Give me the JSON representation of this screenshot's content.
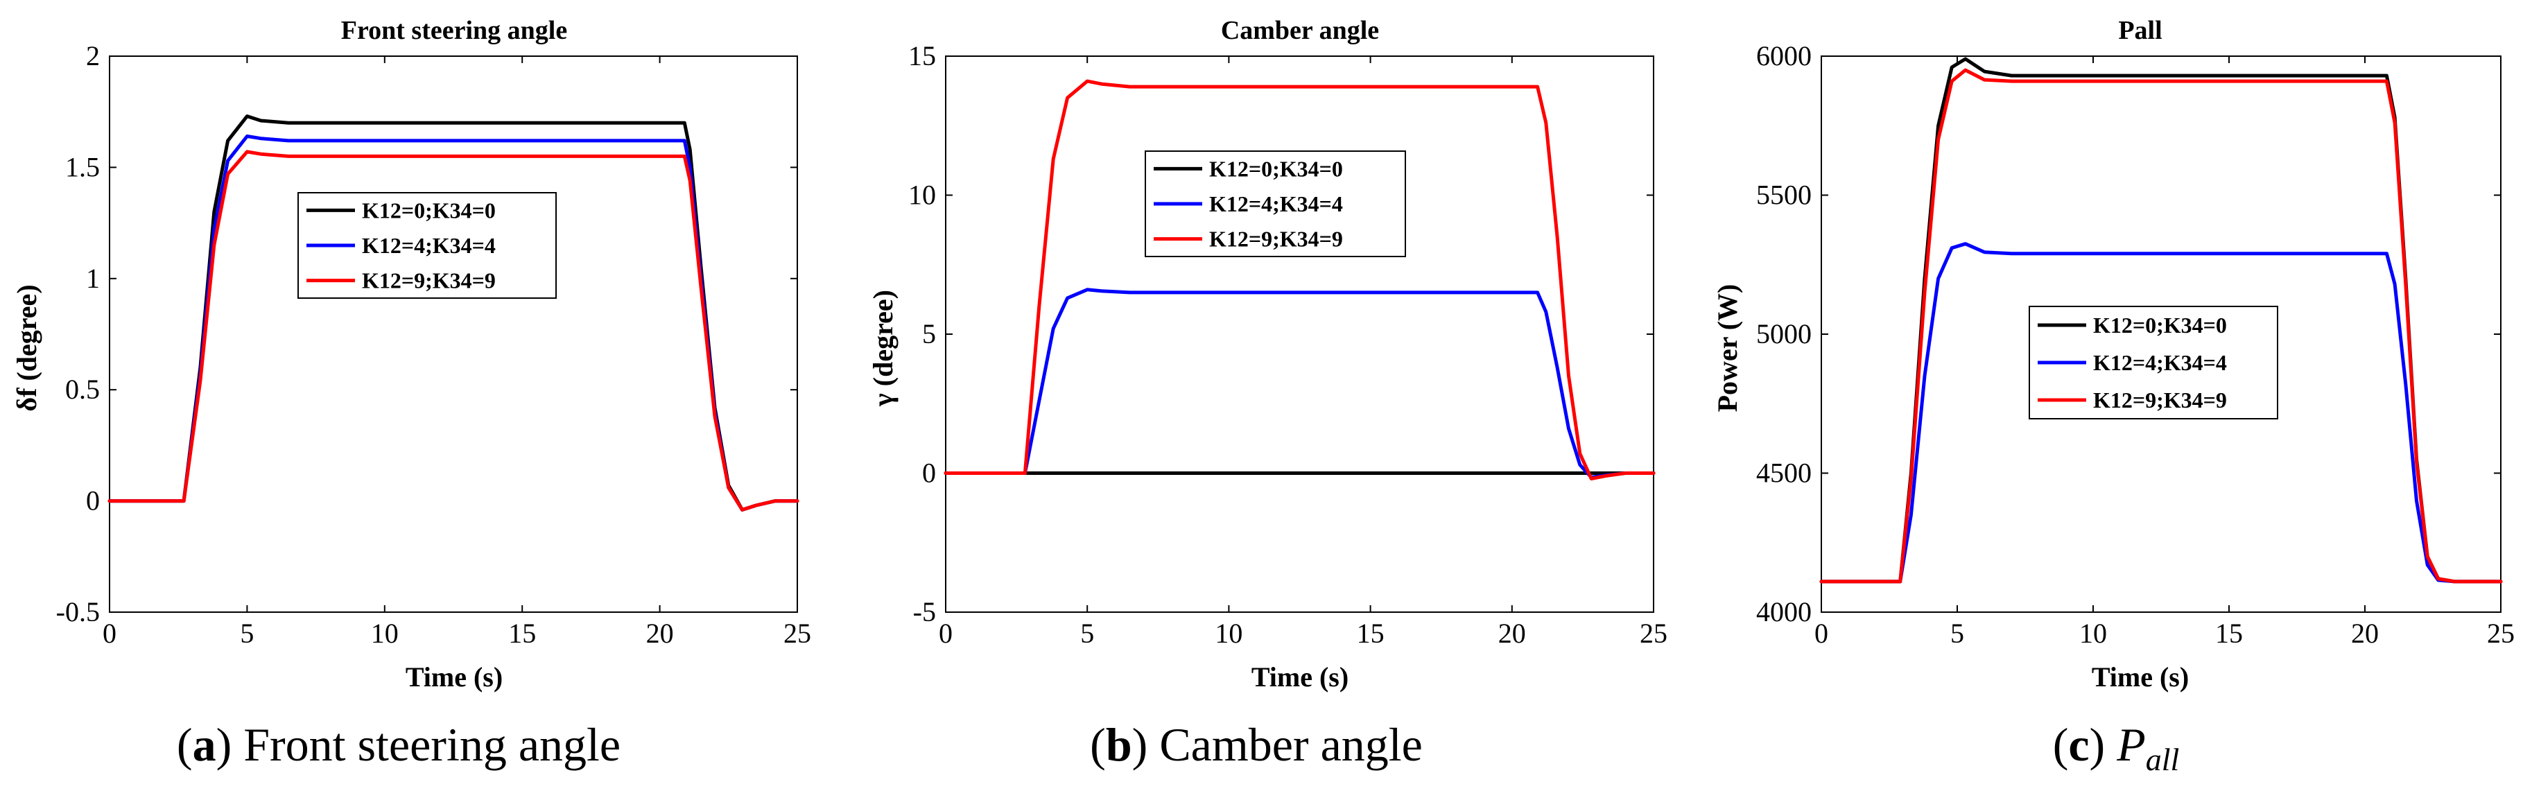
{
  "chart_data": [
    {
      "type": "line",
      "title": "Front steering angle",
      "xlabel": "Time (s)",
      "ylabel": "δf (degree)",
      "xlim": [
        0,
        25
      ],
      "ylim": [
        -0.5,
        2
      ],
      "xticks": [
        0,
        5,
        10,
        15,
        20,
        25
      ],
      "xtick_labels": [
        "0",
        "5",
        "10",
        "15",
        "20",
        "25"
      ],
      "yticks": [
        -0.5,
        0,
        0.5,
        1,
        1.5,
        2
      ],
      "ytick_labels": [
        "-0.5",
        "0",
        "0.5",
        "1",
        "1.5",
        "2"
      ],
      "legend_position": "upper-middle",
      "caption": {
        "letter": "a",
        "text": "Front steering angle"
      },
      "series": [
        {
          "name": "K12=0;K34=0",
          "color": "#000000",
          "x": [
            0,
            2.7,
            3.3,
            3.8,
            4.3,
            5.0,
            5.5,
            6.5,
            8,
            20.9,
            21.1,
            21.5,
            22.0,
            22.5,
            23.0,
            23.5,
            24.2,
            25
          ],
          "y": [
            0,
            0,
            0.6,
            1.3,
            1.62,
            1.73,
            1.71,
            1.7,
            1.7,
            1.7,
            1.58,
            1.05,
            0.42,
            0.07,
            -0.04,
            -0.02,
            0.0,
            0.0
          ]
        },
        {
          "name": "K12=4;K34=4",
          "color": "#0000ff",
          "x": [
            0,
            2.7,
            3.3,
            3.8,
            4.3,
            5.0,
            5.5,
            6.5,
            8,
            20.9,
            21.1,
            21.5,
            22.0,
            22.5,
            23.0,
            23.5,
            24.2,
            25
          ],
          "y": [
            0,
            0,
            0.57,
            1.22,
            1.53,
            1.64,
            1.63,
            1.62,
            1.62,
            1.62,
            1.5,
            1.0,
            0.4,
            0.06,
            -0.04,
            -0.02,
            0.0,
            0.0
          ]
        },
        {
          "name": "K12=9;K34=9",
          "color": "#ff0000",
          "x": [
            0,
            2.7,
            3.3,
            3.8,
            4.3,
            5.0,
            5.5,
            6.5,
            8,
            20.9,
            21.1,
            21.5,
            22.0,
            22.5,
            23.0,
            23.5,
            24.2,
            25
          ],
          "y": [
            0,
            0,
            0.54,
            1.15,
            1.47,
            1.57,
            1.56,
            1.55,
            1.55,
            1.55,
            1.44,
            0.96,
            0.38,
            0.06,
            -0.04,
            -0.02,
            0.0,
            0.0
          ]
        }
      ]
    },
    {
      "type": "line",
      "title": "Camber angle",
      "xlabel": "Time (s)",
      "ylabel": "γ (degree)",
      "xlim": [
        0,
        25
      ],
      "ylim": [
        -5,
        15
      ],
      "xticks": [
        0,
        5,
        10,
        15,
        20,
        25
      ],
      "xtick_labels": [
        "0",
        "5",
        "10",
        "15",
        "20",
        "25"
      ],
      "yticks": [
        -5,
        0,
        5,
        10,
        15
      ],
      "ytick_labels": [
        "-5",
        "0",
        "5",
        "10",
        "15"
      ],
      "legend_position": "upper-middle",
      "caption": {
        "letter": "b",
        "text": "Camber angle"
      },
      "series": [
        {
          "name": "K12=0;K34=0",
          "color": "#000000",
          "x": [
            0,
            25
          ],
          "y": [
            0,
            0
          ]
        },
        {
          "name": "K12=4;K34=4",
          "color": "#0000ff",
          "x": [
            0,
            2.8,
            3.3,
            3.8,
            4.3,
            5.0,
            5.5,
            6.5,
            8,
            20.9,
            21.2,
            21.6,
            22.0,
            22.4,
            22.8,
            23.3,
            24.0,
            25
          ],
          "y": [
            0,
            0,
            2.6,
            5.2,
            6.3,
            6.6,
            6.55,
            6.5,
            6.5,
            6.5,
            5.8,
            3.8,
            1.6,
            0.3,
            -0.15,
            -0.08,
            0,
            0
          ]
        },
        {
          "name": "K12=9;K34=9",
          "color": "#ff0000",
          "x": [
            0,
            2.8,
            3.3,
            3.8,
            4.3,
            5.0,
            5.5,
            6.5,
            8,
            20.9,
            21.2,
            21.6,
            22.0,
            22.4,
            22.8,
            23.3,
            24.0,
            25
          ],
          "y": [
            0,
            0,
            6.0,
            11.3,
            13.5,
            14.1,
            14.0,
            13.9,
            13.9,
            13.9,
            12.6,
            8.5,
            3.5,
            0.7,
            -0.2,
            -0.1,
            0,
            0
          ]
        }
      ]
    },
    {
      "type": "line",
      "title": "Pall",
      "xlabel": "Time (s)",
      "ylabel": "Power (W)",
      "xlim": [
        0,
        25
      ],
      "ylim": [
        4000,
        6000
      ],
      "xticks": [
        0,
        5,
        10,
        15,
        20,
        25
      ],
      "xtick_labels": [
        "0",
        "5",
        "10",
        "15",
        "20",
        "25"
      ],
      "yticks": [
        4000,
        4500,
        5000,
        5500,
        6000
      ],
      "ytick_labels": [
        "4000",
        "4500",
        "5000",
        "5500",
        "6000"
      ],
      "legend_position": "middle",
      "caption": {
        "letter": "c",
        "text": "P",
        "subscript": "all"
      },
      "series": [
        {
          "name": "K12=0;K34=0",
          "color": "#000000",
          "x": [
            0,
            2.9,
            3.3,
            3.8,
            4.3,
            4.8,
            5.3,
            6.0,
            7.0,
            8,
            20.8,
            21.1,
            21.5,
            21.9,
            22.3,
            22.7,
            23.3,
            25
          ],
          "y": [
            4110,
            4110,
            4500,
            5200,
            5750,
            5960,
            5990,
            5945,
            5930,
            5930,
            5930,
            5780,
            5200,
            4550,
            4200,
            4120,
            4110,
            4110
          ]
        },
        {
          "name": "K12=4;K34=4",
          "color": "#0000ff",
          "x": [
            0,
            2.9,
            3.3,
            3.8,
            4.3,
            4.8,
            5.3,
            6.0,
            7.0,
            8,
            20.8,
            21.1,
            21.5,
            21.9,
            22.3,
            22.7,
            23.3,
            25
          ],
          "y": [
            4110,
            4110,
            4350,
            4850,
            5200,
            5310,
            5325,
            5295,
            5290,
            5290,
            5290,
            5180,
            4820,
            4400,
            4170,
            4115,
            4110,
            4110
          ]
        },
        {
          "name": "K12=9;K34=9",
          "color": "#ff0000",
          "x": [
            0,
            2.9,
            3.3,
            3.8,
            4.3,
            4.8,
            5.3,
            6.0,
            7.0,
            8,
            20.8,
            21.1,
            21.5,
            21.9,
            22.3,
            22.7,
            23.3,
            25
          ],
          "y": [
            4110,
            4110,
            4480,
            5150,
            5700,
            5910,
            5950,
            5915,
            5910,
            5910,
            5910,
            5760,
            5180,
            4540,
            4200,
            4120,
            4110,
            4110
          ]
        }
      ]
    }
  ]
}
